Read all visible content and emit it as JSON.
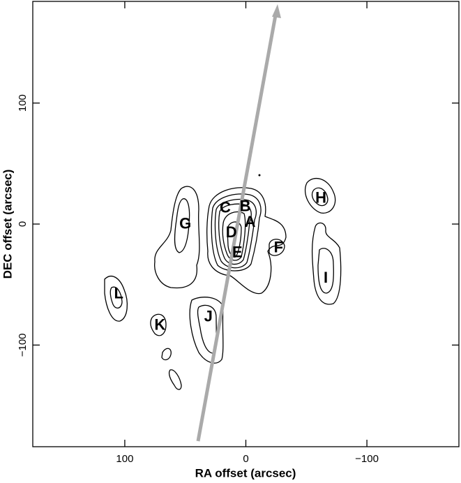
{
  "chart_data": {
    "type": "contour",
    "x_label": "RA  offset (arcsec)",
    "y_label": "DEC  offset (arcsec)",
    "xlim": [
      176,
      -176
    ],
    "ylim": [
      -184,
      184
    ],
    "xticks": [
      100,
      0,
      {
        "value": -100,
        "label": "−100"
      }
    ],
    "yticks": [
      {
        "value": -100,
        "label": "−100"
      },
      0,
      100
    ],
    "labels": [
      {
        "text": "A",
        "x": -3.5,
        "y": 1
      },
      {
        "text": "B",
        "x": 0.5,
        "y": 14
      },
      {
        "text": "C",
        "x": 17,
        "y": 13
      },
      {
        "text": "D",
        "x": 12,
        "y": -7.5
      },
      {
        "text": "E",
        "x": 7,
        "y": -24
      },
      {
        "text": "F",
        "x": -27,
        "y": -20
      },
      {
        "text": "G",
        "x": 50,
        "y": -0.5
      },
      {
        "text": "H",
        "x": -62,
        "y": 21
      },
      {
        "text": "I",
        "x": -66,
        "y": -45
      },
      {
        "text": "J",
        "x": 31,
        "y": -77
      },
      {
        "text": "K",
        "x": 71,
        "y": -84
      },
      {
        "text": "L",
        "x": 105,
        "y": -58
      }
    ]
  }
}
